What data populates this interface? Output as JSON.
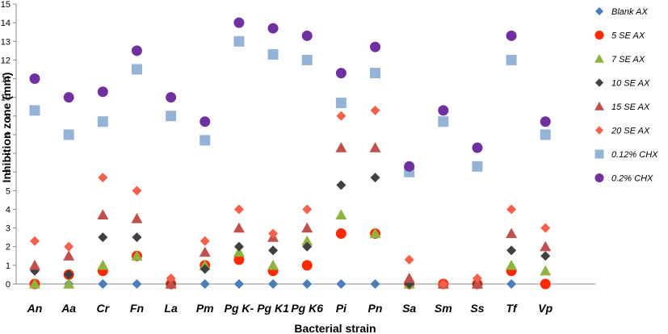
{
  "chart_data": {
    "type": "scatter",
    "xlabel": "Bacterial strain",
    "ylabel": "Inhibition zone (mm)",
    "ylim": [
      0,
      15
    ],
    "yticks": [
      "0",
      "1",
      "2",
      "3",
      "4",
      "5",
      "6",
      "7",
      "8",
      "9",
      "10",
      "11",
      "12",
      "13",
      "14",
      "15"
    ],
    "grid": false,
    "legend_position": "right",
    "categories": [
      "An",
      "Aa",
      "Cr",
      "Fn",
      "La",
      "Pm",
      "Pg K-",
      "Pg K1",
      "Pg K6",
      "Pi",
      "Pn",
      "Sa",
      "Sm",
      "Ss",
      "Tf",
      "Vp"
    ],
    "series": [
      {
        "name": "Blank AX",
        "marker": "diamond",
        "color": "#4a7ebb",
        "values": [
          0,
          0,
          0,
          0,
          0,
          0,
          0,
          0,
          0,
          0,
          0,
          0,
          0,
          0,
          0,
          0
        ]
      },
      {
        "name": "5 SE AX",
        "marker": "circle",
        "color": "#ff2a00",
        "values": [
          0,
          0.5,
          0.7,
          1.5,
          0,
          1,
          1.3,
          0.7,
          1,
          2.7,
          2.7,
          0,
          0,
          0,
          0.7,
          0
        ]
      },
      {
        "name": "7 SE AX",
        "marker": "triangle",
        "color": "#8fb341",
        "values": [
          0,
          0,
          1,
          1.5,
          0,
          1,
          1.7,
          1,
          2.3,
          3.7,
          2.7,
          0,
          0,
          0,
          1,
          0.7
        ]
      },
      {
        "name": "10 SE AX",
        "marker": "diamond",
        "color": "#404040",
        "values": [
          0.7,
          0.5,
          2.5,
          2.5,
          0,
          0.8,
          2,
          1.8,
          2,
          5.3,
          5.7,
          0,
          0,
          0,
          1.8,
          1.5
        ]
      },
      {
        "name": "15 SE AX",
        "marker": "triangle",
        "color": "#c0504d",
        "values": [
          1,
          1.5,
          3.7,
          3.5,
          0,
          1.7,
          3,
          2.5,
          3,
          7.3,
          7.3,
          0.3,
          0,
          0,
          2.7,
          2
        ]
      },
      {
        "name": "20 SE AX",
        "marker": "diamond",
        "color": "#f7604a",
        "values": [
          2.3,
          2,
          5.7,
          5,
          0.3,
          2.3,
          4,
          2.7,
          4,
          9,
          9.3,
          1.3,
          0,
          0.3,
          4,
          3
        ]
      },
      {
        "name": "0.12% CHX",
        "marker": "square",
        "color": "#95b3d7",
        "values": [
          9.3,
          8,
          8.7,
          11.5,
          9,
          7.7,
          13,
          12.3,
          12,
          9.7,
          11.3,
          6,
          8.7,
          6.3,
          12,
          8
        ]
      },
      {
        "name": "0.2% CHX",
        "marker": "circle",
        "color": "#7030a0",
        "values": [
          11,
          10,
          10.3,
          12.5,
          10,
          8.7,
          14,
          13.7,
          13.3,
          11.3,
          12.7,
          6.3,
          9.3,
          7.3,
          13.3,
          8.7
        ]
      }
    ]
  }
}
